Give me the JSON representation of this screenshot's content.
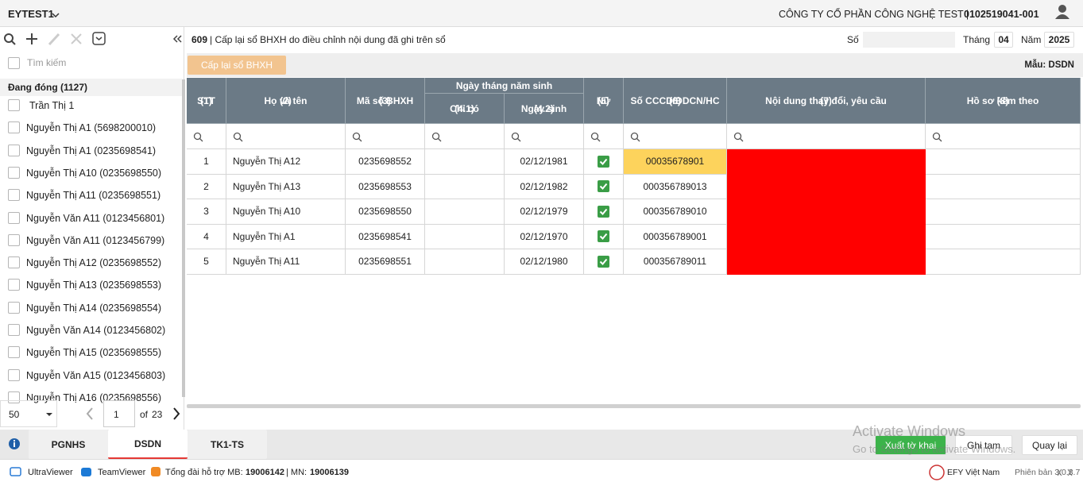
{
  "header": {
    "app": "EYTEST1",
    "company": "CÔNG TY CỔ PHẦN CÔNG NGHỆ TEST |",
    "tax_code": "0102519041-001"
  },
  "sidebar": {
    "search_placeholder": "Tìm kiếm",
    "group": "Đang đóng (1127)",
    "items": [
      "Trần Thị 1",
      "Nguyễn Thị A1 (5698200010)",
      "Nguyễn Thị A1 (0235698541)",
      "Nguyễn Thị A10 (0235698550)",
      "Nguyễn Thị A11 (0235698551)",
      "Nguyễn Văn A11 (0123456801)",
      "Nguyễn Văn A11 (0123456799)",
      "Nguyễn Thị A12 (0235698552)",
      "Nguyễn Thị A13 (0235698553)",
      "Nguyễn Thị A14 (0235698554)",
      "Nguyễn Văn A14 (0123456802)",
      "Nguyễn Thị A15 (0235698555)",
      "Nguyễn Văn A15 (0123456803)",
      "Nguyễn Thị A16 (0235698556)"
    ],
    "pager": {
      "page_size": "50",
      "page": "1",
      "of": "of",
      "total_pages": "23"
    }
  },
  "tabs": [
    "PGNHS",
    "DSDN",
    "TK1-TS"
  ],
  "active_tab": 1,
  "form": {
    "code": "609",
    "title": "| Cấp lại sổ BHXH do điều chỉnh nội dung đã ghi trên sổ",
    "so_label": "Số",
    "thang_label": "Tháng",
    "thang": "04",
    "nam_label": "Năm",
    "nam": "2025",
    "action_button": "Cấp lại sổ BHXH",
    "template": "Mẫu: DSDN"
  },
  "table": {
    "group_header": "Ngày tháng năm sinh",
    "columns": [
      {
        "label": "STT",
        "number": "(1)"
      },
      {
        "label": "Họ và tên",
        "number": "(2)"
      },
      {
        "label": "Mã số BHXH",
        "number": "(3)"
      },
      {
        "label": "Chỉ có",
        "number": "(4.1)"
      },
      {
        "label": "Ngày sinh",
        "number": "(4.2)"
      },
      {
        "label": "Nữ",
        "number": "(5)"
      },
      {
        "label": "Số CCCD/ĐDCN/HC",
        "number": "(6)"
      },
      {
        "label": "Nội dung thay đổi, yêu cầu",
        "number": "(7)"
      },
      {
        "label": "Hồ sơ kèm theo",
        "number": "(8)"
      }
    ],
    "rows": [
      {
        "stt": 1,
        "name": "Nguyễn Thị A12",
        "bhxh": "0235698552",
        "dob": "02/12/1981",
        "female": true,
        "cccd": "00035678901"
      },
      {
        "stt": 2,
        "name": "Nguyễn Thị A13",
        "bhxh": "0235698553",
        "dob": "02/12/1982",
        "female": true,
        "cccd": "000356789013"
      },
      {
        "stt": 3,
        "name": "Nguyễn Thị A10",
        "bhxh": "0235698550",
        "dob": "02/12/1979",
        "female": true,
        "cccd": "000356789010"
      },
      {
        "stt": 4,
        "name": "Nguyễn Thị A1",
        "bhxh": "0235698541",
        "dob": "02/12/1970",
        "female": true,
        "cccd": "000356789001"
      },
      {
        "stt": 5,
        "name": "Nguyễn Thị A11",
        "bhxh": "0235698551",
        "dob": "02/12/1980",
        "female": true,
        "cccd": "000356789011"
      }
    ],
    "selected_cell": {
      "row": 0,
      "column": 6
    }
  },
  "footer_buttons": [
    "Xuất tờ khai",
    "Ghi tạm",
    "Quay lại"
  ],
  "status_bar": {
    "ultraviewer": "UltraViewer",
    "teamviewer": "TeamViewer",
    "hotline_label": "Tổng đài hỗ trợ MB:",
    "hotline_mb": "19006142",
    "mn_label": "| MN:",
    "hotline_mn": "19006139",
    "brand": "EFY Việt Nam",
    "version": "Phiên bản 3.0.3.7"
  },
  "watermark": {
    "title": "Activate Windows",
    "subtitle": "Go to Settings to activate Windows."
  }
}
